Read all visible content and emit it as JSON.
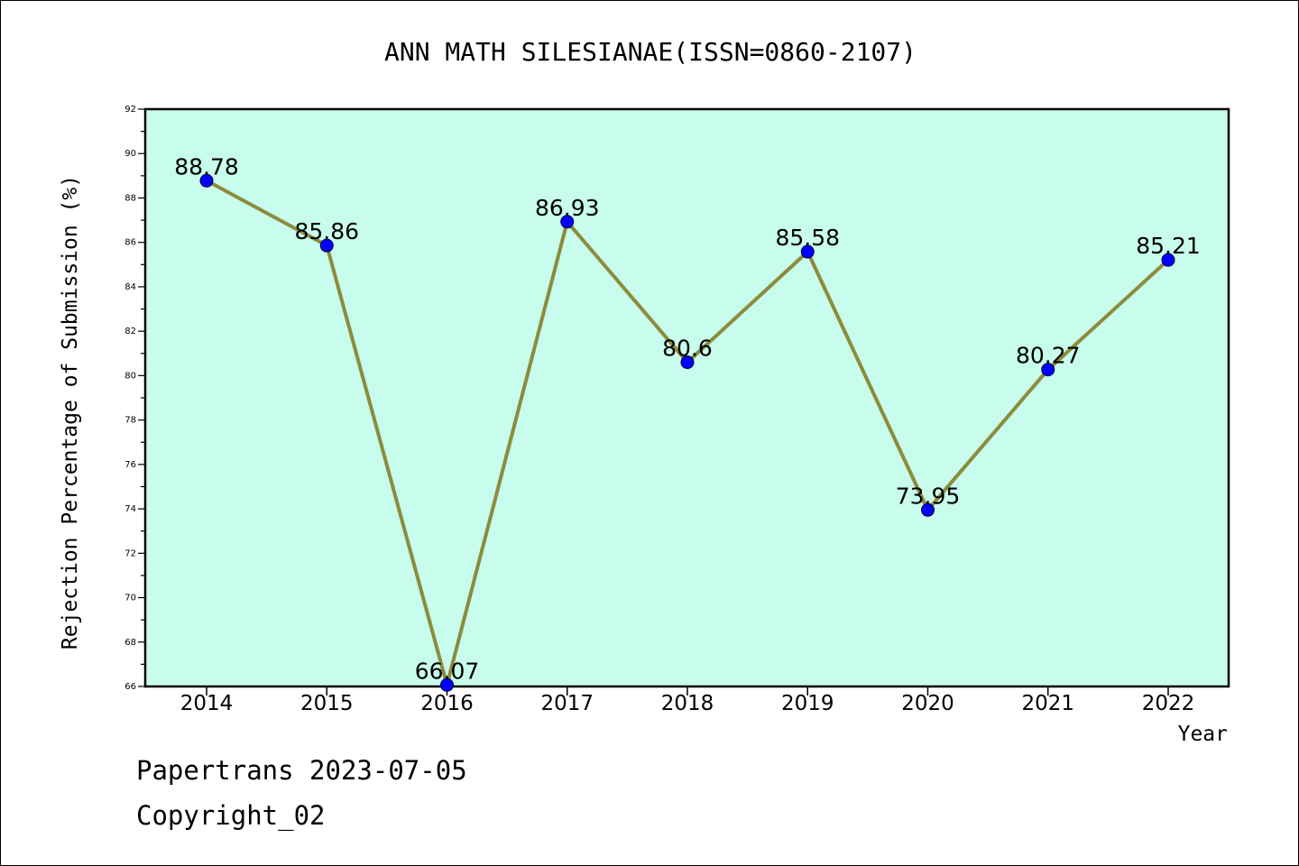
{
  "chart_data": {
    "type": "line",
    "title": "ANN MATH SILESIANAE(ISSN=0860-2107)",
    "xlabel": "Year",
    "ylabel": "Rejection Percentage of Submission (%)",
    "categories": [
      "2014",
      "2015",
      "2016",
      "2017",
      "2018",
      "2019",
      "2020",
      "2021",
      "2022"
    ],
    "series": [
      {
        "values": [
          88.78,
          85.86,
          66.07,
          86.93,
          80.6,
          85.58,
          73.95,
          80.27,
          85.21
        ],
        "labels": [
          "88.78",
          "85.86",
          "66.07",
          "86.93",
          "80.6",
          "85.58",
          "73.95",
          "80.27",
          "85.21"
        ]
      }
    ],
    "ylim": [
      66,
      92
    ],
    "yticks": [
      "66",
      "68",
      "70",
      "72",
      "74",
      "76",
      "78",
      "80",
      "82",
      "84",
      "86",
      "88",
      "90",
      "92"
    ],
    "grid": false,
    "colors": {
      "plot_background": "#c8fcec",
      "line": "#8c8c3c",
      "marker": "#0000ff"
    }
  },
  "footer": {
    "date_text": "Papertrans 2023-07-05",
    "copyright_text": "Copyright_02"
  }
}
